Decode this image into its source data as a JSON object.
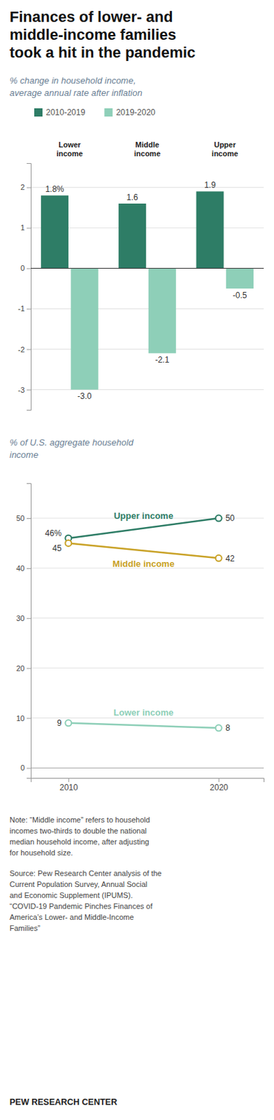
{
  "chart_data": [
    {
      "type": "bar",
      "title": "Finances of lower- and\nmiddle-income families\ntook a hit in the pandemic",
      "subtitle": "% change in household income,\naverage annual rate after inflation",
      "categories": [
        "Lower\nincome",
        "Middle\nincome",
        "Upper\nincome"
      ],
      "series": [
        {
          "name": "2010-2019",
          "color": "#2e7d66",
          "values": [
            1.8,
            1.6,
            1.9
          ],
          "value_labels": [
            "1.8%",
            "1.6",
            "1.9"
          ]
        },
        {
          "name": "2019-2020",
          "color": "#8ecfb8",
          "values": [
            -3.0,
            -2.1,
            -0.5
          ],
          "value_labels": [
            "-3.0",
            "-2.1",
            "-0.5"
          ]
        }
      ],
      "ylim": [
        -3.5,
        2.6
      ],
      "yticks": [
        -3,
        -2,
        -1,
        0,
        1,
        2
      ],
      "grid": true,
      "legend": "top-left",
      "data_labels": true
    },
    {
      "type": "line",
      "subtitle": "% of U.S. aggregate household\nincome",
      "x": [
        2010,
        2020
      ],
      "series": [
        {
          "name": "Upper income",
          "color": "#2e7d66",
          "values": [
            46,
            50
          ],
          "value_labels": [
            "46%",
            "50"
          ]
        },
        {
          "name": "Middle income",
          "color": "#c9a227",
          "values": [
            45,
            42
          ],
          "value_labels": [
            "45",
            "42"
          ]
        },
        {
          "name": "Lower income",
          "color": "#8ecfb8",
          "values": [
            9,
            8
          ],
          "value_labels": [
            "9",
            "8"
          ]
        }
      ],
      "xlim": [
        2007.5,
        2023
      ],
      "xticks": [
        2010,
        2020
      ],
      "ylim": [
        -2,
        57
      ],
      "yticks": [
        0,
        10,
        20,
        30,
        40,
        50
      ],
      "grid": true,
      "marker": "circle",
      "data_labels": true,
      "annotations": [
        "Note: “Middle income” refers to household\nincomes two-thirds to double the national\nmedian household income, after adjusting\nfor household size.",
        "Source: Pew Research Center analysis of the\nCurrent Population Survey, Annual Social\nand Economic Supplement (IPUMS).\n“COVID-19 Pandemic Pinches Finances of\nAmerica’s Lower- and Middle-Income\nFamilies”",
        "PEW RESEARCH CENTER"
      ]
    }
  ]
}
